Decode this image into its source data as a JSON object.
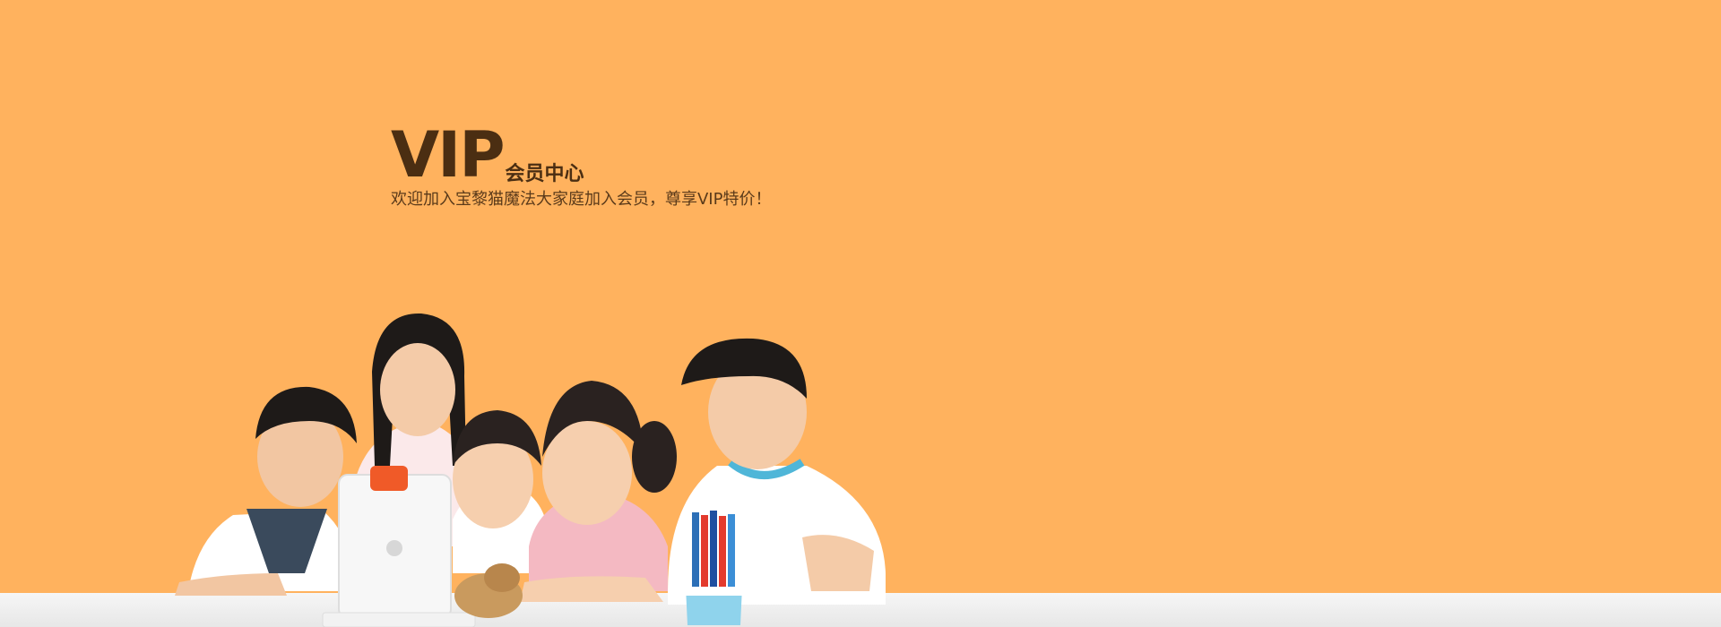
{
  "banner": {
    "title_main": "VIP",
    "title_sub": "会员中心",
    "tagline": "欢迎加入宝黎猫魔法大家庭加入会员，尊享VIP特价！"
  },
  "colors": {
    "background": "#FFB25E",
    "title": "#4B2E12",
    "table": "#F2F2F2"
  },
  "illustration": {
    "subject": "children-with-tablet",
    "icons": [
      "tablet-icon",
      "marker-cup-icon"
    ]
  }
}
